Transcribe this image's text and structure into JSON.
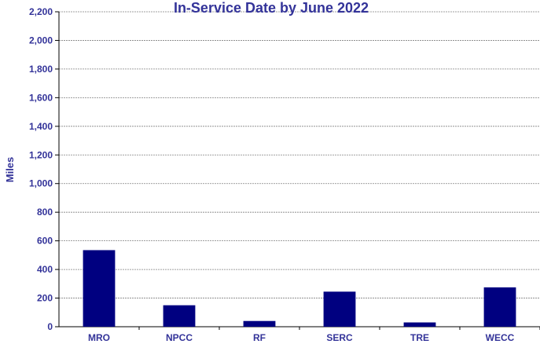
{
  "colors": {
    "bar": "#000080",
    "text": "#333399",
    "grid": "#808080",
    "axis": "#000000",
    "background": "#ffffff"
  },
  "chart_data": {
    "type": "bar",
    "title": "In-Service Date by June 2022",
    "xlabel": "",
    "ylabel": "Miles",
    "categories": [
      "MRO",
      "NPCC",
      "RF",
      "SERC",
      "TRE",
      "WECC"
    ],
    "values": [
      535,
      150,
      40,
      245,
      30,
      275
    ],
    "ylim": [
      0,
      2200
    ],
    "yticks": [
      0,
      200,
      400,
      600,
      800,
      1000,
      1200,
      1400,
      1600,
      1800,
      2000,
      2200
    ],
    "ytick_labels": [
      "0",
      "200",
      "400",
      "600",
      "800",
      "1,000",
      "1,200",
      "1,400",
      "1,600",
      "1,800",
      "2,000",
      "2,200"
    ],
    "grid": true,
    "legend": "none"
  }
}
